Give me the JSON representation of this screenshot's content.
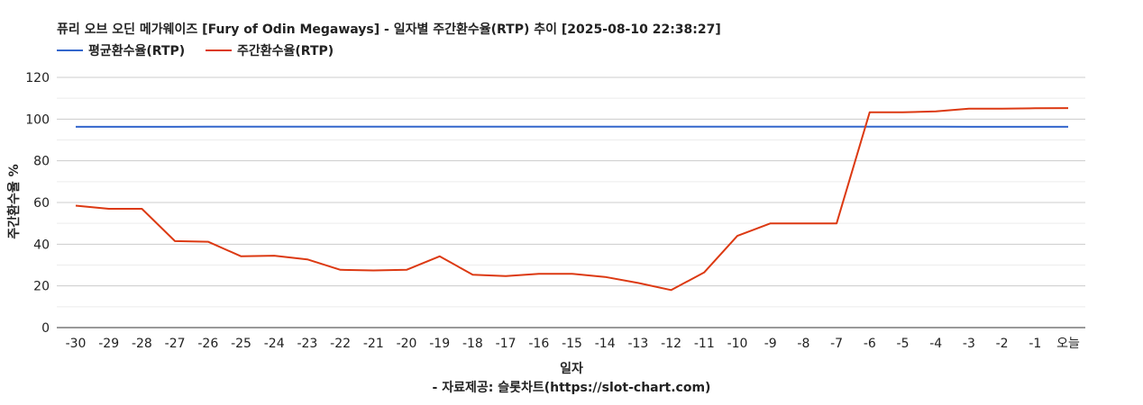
{
  "chart_data": {
    "type": "line",
    "title": "퓨리 오브 오딘 메가웨이즈 [Fury of Odin Megaways] - 일자별 주간환수율(RTP) 추이 [2025-08-10 22:38:27]",
    "xlabel": "일자",
    "ylabel": "주간환수율 %",
    "source": "- 자료제공: 슬롯차트(https://slot-chart.com)",
    "ylim": [
      0,
      120
    ],
    "yticks": [
      "0",
      "20",
      "40",
      "60",
      "80",
      "100",
      "120"
    ],
    "grid": true,
    "legend_position": "top-left",
    "categories": [
      "-30",
      "-29",
      "-28",
      "-27",
      "-26",
      "-25",
      "-24",
      "-23",
      "-22",
      "-21",
      "-20",
      "-19",
      "-18",
      "-17",
      "-16",
      "-15",
      "-14",
      "-13",
      "-12",
      "-11",
      "-10",
      "-9",
      "-8",
      "-7",
      "-6",
      "-5",
      "-4",
      "-3",
      "-2",
      "-1",
      "오늘"
    ],
    "series": [
      {
        "name": "평균환수율(RTP)",
        "color": "#3366cc",
        "values": [
          96.3,
          96.3,
          96.3,
          96.3,
          96.4,
          96.4,
          96.4,
          96.4,
          96.4,
          96.4,
          96.4,
          96.4,
          96.4,
          96.4,
          96.4,
          96.4,
          96.4,
          96.4,
          96.4,
          96.4,
          96.4,
          96.4,
          96.4,
          96.4,
          96.4,
          96.4,
          96.4,
          96.3,
          96.3,
          96.3,
          96.3
        ]
      },
      {
        "name": "주간환수율(RTP)",
        "color": "#dc3912",
        "values": [
          58.5,
          57.0,
          57.0,
          41.5,
          41.2,
          34.2,
          34.5,
          32.7,
          27.7,
          27.4,
          27.7,
          34.2,
          25.4,
          24.7,
          25.8,
          25.8,
          24.3,
          21.4,
          18.0,
          26.5,
          44.0,
          50.0,
          50.0,
          50.0,
          103.3,
          103.3,
          103.7,
          105.0,
          105.0,
          105.2,
          105.3
        ]
      }
    ]
  }
}
